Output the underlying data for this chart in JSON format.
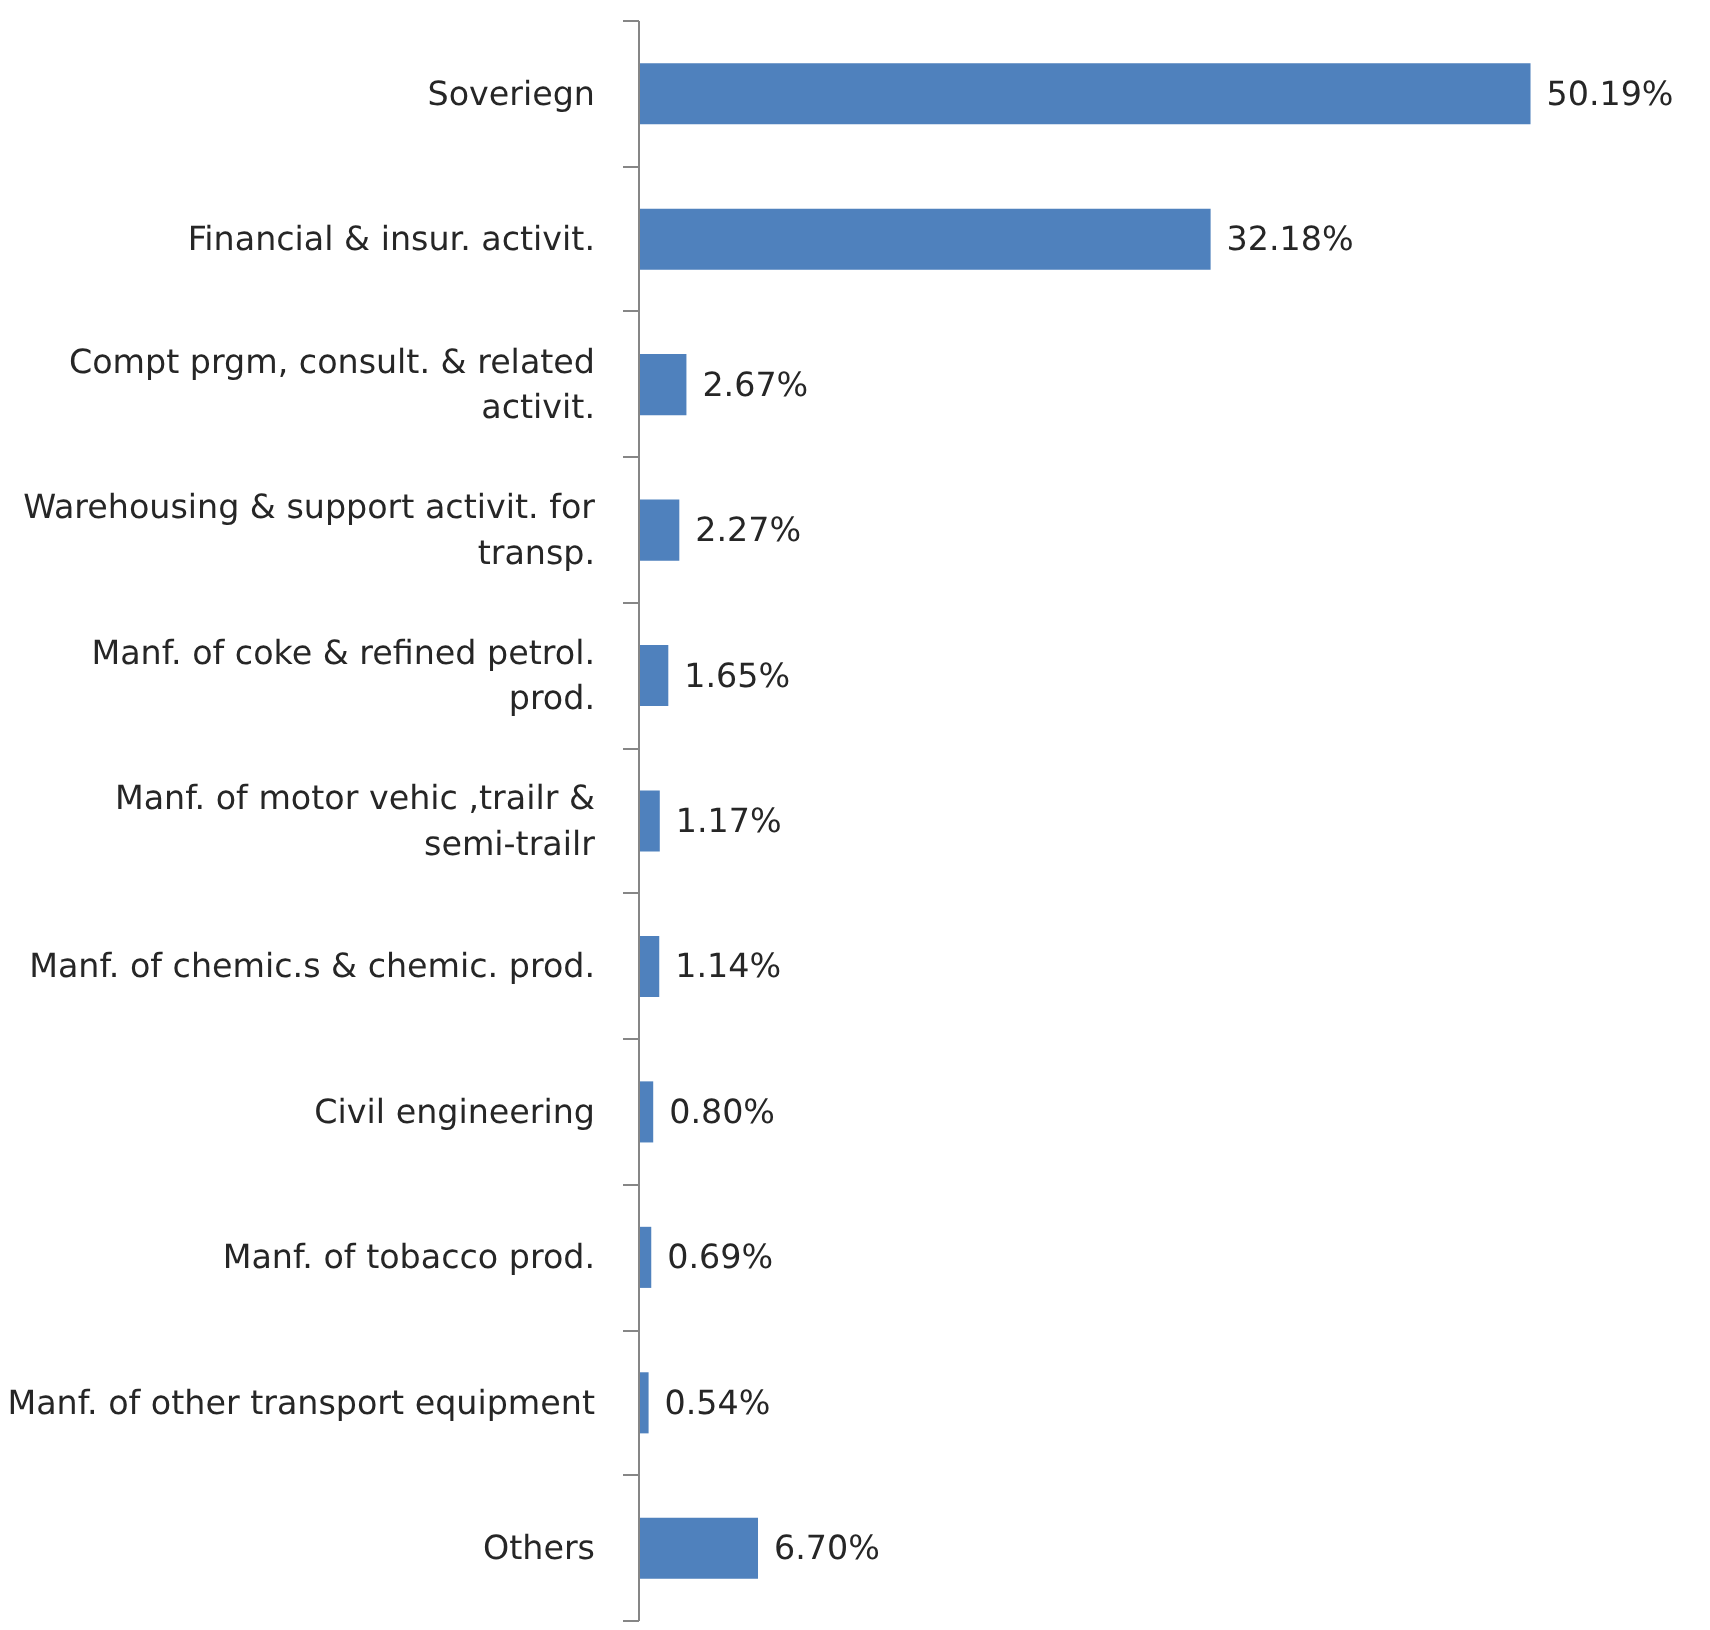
{
  "chart_data": {
    "type": "bar",
    "orientation": "horizontal",
    "data_labels": true,
    "categories": [
      "Soveriegn",
      "Financial & insur. activit.",
      "Compt prgm, consult. & related activit.",
      "Warehousing & support activit. for transp.",
      "Manf. of coke & refined petrol. prod.",
      "Manf. of motor vehic ,trailr & semi-trailr",
      "Manf. of chemic.s & chemic. prod.",
      "Civil engineering",
      "Manf. of tobacco prod.",
      "Manf. of other transport equipment",
      "Others"
    ],
    "series": [
      {
        "color": "#4f81bd",
        "values": [
          50.19,
          32.18,
          2.67,
          2.27,
          1.65,
          1.17,
          1.14,
          0.8,
          0.69,
          0.54,
          6.7
        ],
        "value_labels": [
          "50.19%",
          "32.18%",
          "2.67%",
          "2.27%",
          "1.65%",
          "1.17%",
          "1.14%",
          "0.80%",
          "0.69%",
          "0.54%",
          "6.70%"
        ]
      }
    ]
  }
}
